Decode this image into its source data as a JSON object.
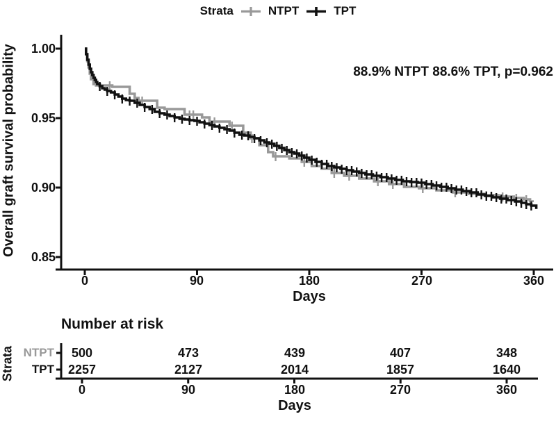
{
  "colors": {
    "black": "#111111",
    "gray": "#999999",
    "background": "#ffffff"
  },
  "legend": {
    "title": "Strata",
    "items": [
      {
        "label": "NTPT",
        "color": "#999999"
      },
      {
        "label": "TPT",
        "color": "#111111"
      }
    ]
  },
  "chart_data": {
    "type": "line",
    "subtype": "kaplan-meier-step",
    "title": "",
    "ylabel": "Overall graft survival probability",
    "xlabel": "Days",
    "annotation": "88.9% NTPT 88.6% TPT, p=0.962",
    "x_ticks": [
      0,
      90,
      180,
      270,
      360
    ],
    "y_ticks": [
      "1.00",
      "0.95",
      "0.90",
      "0.85"
    ],
    "xlim": [
      0,
      375
    ],
    "ylim": [
      0.841,
      1.01
    ],
    "grid": "off",
    "legend_position": "top",
    "series": [
      {
        "name": "NTPT",
        "color": "#999999",
        "final_survival": "88.9%",
        "end_day": 359,
        "steps": [
          [
            0,
            1.0
          ],
          [
            1,
            0.996
          ],
          [
            2,
            0.991
          ],
          [
            3,
            0.9865
          ],
          [
            4,
            0.982
          ],
          [
            5,
            0.978
          ],
          [
            7,
            0.9745
          ],
          [
            9,
            0.9735
          ],
          [
            22,
            0.9725
          ],
          [
            36,
            0.9675
          ],
          [
            40,
            0.9645
          ],
          [
            43,
            0.9625
          ],
          [
            58,
            0.9575
          ],
          [
            64,
            0.9565
          ],
          [
            80,
            0.9525
          ],
          [
            94,
            0.9505
          ],
          [
            100,
            0.9475
          ],
          [
            116,
            0.9445
          ],
          [
            127,
            0.9395
          ],
          [
            133,
            0.9355
          ],
          [
            140,
            0.9305
          ],
          [
            147,
            0.9255
          ],
          [
            151,
            0.9225
          ],
          [
            164,
            0.921
          ],
          [
            174,
            0.9185
          ],
          [
            182,
            0.9155
          ],
          [
            190,
            0.9135
          ],
          [
            198,
            0.9105
          ],
          [
            208,
            0.9085
          ],
          [
            220,
            0.9065
          ],
          [
            232,
            0.9045
          ],
          [
            244,
            0.9025
          ],
          [
            256,
            0.9005
          ],
          [
            268,
            0.8995
          ],
          [
            282,
            0.898
          ],
          [
            295,
            0.8965
          ],
          [
            308,
            0.8955
          ],
          [
            320,
            0.8945
          ],
          [
            332,
            0.8935
          ],
          [
            344,
            0.8925
          ],
          [
            352,
            0.8915
          ],
          [
            357,
            0.89
          ],
          [
            359,
            0.8895
          ]
        ],
        "censor_days": [
          20,
          46,
          84,
          87,
          104,
          118,
          134,
          153,
          176,
          200,
          212,
          235,
          247,
          271,
          297,
          322,
          335,
          346,
          354
        ]
      },
      {
        "name": "TPT",
        "color": "#111111",
        "final_survival": "88.6%",
        "end_day": 363,
        "steps": [
          [
            0,
            1.0
          ],
          [
            1,
            0.996
          ],
          [
            2,
            0.992
          ],
          [
            3,
            0.9885
          ],
          [
            4,
            0.9855
          ],
          [
            5,
            0.983
          ],
          [
            6,
            0.981
          ],
          [
            7,
            0.979
          ],
          [
            8,
            0.9775
          ],
          [
            9,
            0.976
          ],
          [
            10,
            0.9745
          ],
          [
            12,
            0.973
          ],
          [
            14,
            0.9715
          ],
          [
            16,
            0.9705
          ],
          [
            18,
            0.9695
          ],
          [
            21,
            0.9685
          ],
          [
            24,
            0.967
          ],
          [
            27,
            0.9655
          ],
          [
            30,
            0.964
          ],
          [
            33,
            0.963
          ],
          [
            36,
            0.9625
          ],
          [
            40,
            0.961
          ],
          [
            44,
            0.9595
          ],
          [
            48,
            0.958
          ],
          [
            52,
            0.9565
          ],
          [
            56,
            0.9545
          ],
          [
            60,
            0.9535
          ],
          [
            64,
            0.9525
          ],
          [
            68,
            0.9515
          ],
          [
            72,
            0.9505
          ],
          [
            76,
            0.9495
          ],
          [
            80,
            0.949
          ],
          [
            84,
            0.9485
          ],
          [
            88,
            0.948
          ],
          [
            92,
            0.947
          ],
          [
            96,
            0.946
          ],
          [
            100,
            0.945
          ],
          [
            104,
            0.944
          ],
          [
            108,
            0.943
          ],
          [
            112,
            0.942
          ],
          [
            116,
            0.941
          ],
          [
            120,
            0.9395
          ],
          [
            124,
            0.938
          ],
          [
            128,
            0.9375
          ],
          [
            132,
            0.9365
          ],
          [
            136,
            0.9355
          ],
          [
            140,
            0.934
          ],
          [
            144,
            0.9325
          ],
          [
            148,
            0.9315
          ],
          [
            152,
            0.93
          ],
          [
            156,
            0.9285
          ],
          [
            160,
            0.927
          ],
          [
            164,
            0.9255
          ],
          [
            168,
            0.9245
          ],
          [
            172,
            0.923
          ],
          [
            176,
            0.9215
          ],
          [
            180,
            0.92
          ],
          [
            185,
            0.9185
          ],
          [
            190,
            0.917
          ],
          [
            195,
            0.9155
          ],
          [
            200,
            0.9145
          ],
          [
            205,
            0.9135
          ],
          [
            210,
            0.9125
          ],
          [
            215,
            0.9115
          ],
          [
            220,
            0.9105
          ],
          [
            225,
            0.9095
          ],
          [
            231,
            0.9085
          ],
          [
            237,
            0.9075
          ],
          [
            243,
            0.9065
          ],
          [
            249,
            0.9055
          ],
          [
            255,
            0.9045
          ],
          [
            261,
            0.904
          ],
          [
            267,
            0.9035
          ],
          [
            273,
            0.9025
          ],
          [
            279,
            0.9015
          ],
          [
            285,
            0.9005
          ],
          [
            291,
            0.8995
          ],
          [
            297,
            0.8985
          ],
          [
            303,
            0.8975
          ],
          [
            309,
            0.8965
          ],
          [
            315,
            0.895
          ],
          [
            321,
            0.894
          ],
          [
            327,
            0.893
          ],
          [
            333,
            0.892
          ],
          [
            339,
            0.891
          ],
          [
            345,
            0.89
          ],
          [
            350,
            0.889
          ],
          [
            354,
            0.888
          ],
          [
            358,
            0.887
          ],
          [
            362,
            0.8855
          ]
        ],
        "censor_days": [
          12,
          18,
          24,
          30,
          36,
          42,
          48,
          54,
          60,
          66,
          72,
          78,
          84,
          90,
          96,
          102,
          108,
          114,
          120,
          126,
          131,
          136,
          141,
          146,
          150,
          154,
          158,
          162,
          166,
          170,
          174,
          178,
          182,
          186,
          190,
          194,
          198,
          202,
          206,
          210,
          214,
          218,
          222,
          226,
          230,
          234,
          238,
          242,
          246,
          250,
          254,
          258,
          262,
          266,
          270,
          274,
          278,
          282,
          286,
          290,
          294,
          298,
          302,
          306,
          310,
          314,
          318,
          322,
          326,
          330,
          334,
          338,
          342,
          346,
          350,
          354,
          358
        ]
      }
    ],
    "risk_table": {
      "title": "Number at risk",
      "axis_label": "Strata",
      "xlabel": "Days",
      "x_ticks": [
        0,
        90,
        180,
        270,
        360
      ],
      "rows": [
        {
          "name": "NTPT",
          "color": "#999999",
          "values": [
            "500",
            "473",
            "439",
            "407",
            "348"
          ]
        },
        {
          "name": "TPT",
          "color": "#111111",
          "values": [
            "2257",
            "2127",
            "2014",
            "1857",
            "1640"
          ]
        }
      ]
    }
  }
}
